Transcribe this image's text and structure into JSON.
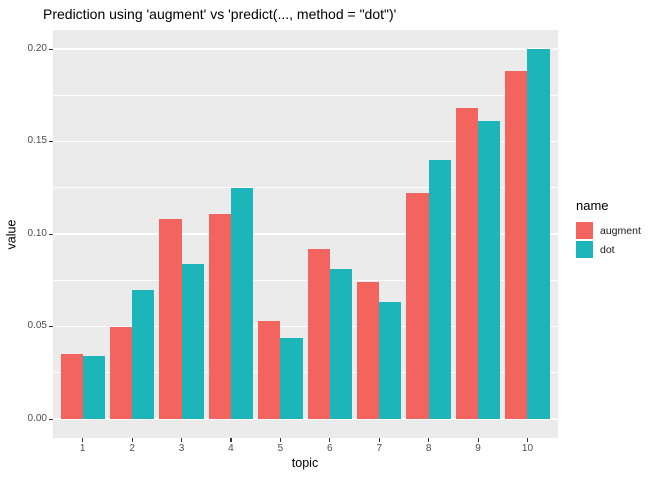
{
  "title": "Prediction using 'augment' vs 'predict(..., method = \"dot\")'",
  "chart_data": {
    "type": "bar",
    "bar_mode": "dodged",
    "title": "Prediction using 'augment' vs 'predict(..., method = \"dot\")'",
    "xlabel": "topic",
    "ylabel": "value",
    "categories": [
      "1",
      "2",
      "3",
      "4",
      "5",
      "6",
      "7",
      "8",
      "9",
      "10"
    ],
    "series": [
      {
        "name": "augment",
        "color": "#F4645E",
        "values": [
          0.035,
          0.05,
          0.108,
          0.111,
          0.053,
          0.092,
          0.074,
          0.122,
          0.168,
          0.188
        ]
      },
      {
        "name": "dot",
        "color": "#1CB5B9",
        "values": [
          0.034,
          0.07,
          0.084,
          0.125,
          0.044,
          0.081,
          0.063,
          0.14,
          0.161,
          0.2
        ]
      }
    ],
    "ylim": [
      0,
      0.2
    ],
    "yticks": [
      0,
      0.05,
      0.1,
      0.15,
      0.2
    ],
    "ytick_labels": [
      "0.00",
      "0.05",
      "0.10",
      "0.15",
      "0.20"
    ],
    "minor_gridlines": [
      0.025,
      0.075,
      0.125,
      0.175
    ],
    "grid": true,
    "legend_position": "right",
    "legend_title": "name",
    "panel_background": "#EBEBEB",
    "gridline_color": "#FFFFFF",
    "tick_label_color": "#4D4D4D"
  }
}
